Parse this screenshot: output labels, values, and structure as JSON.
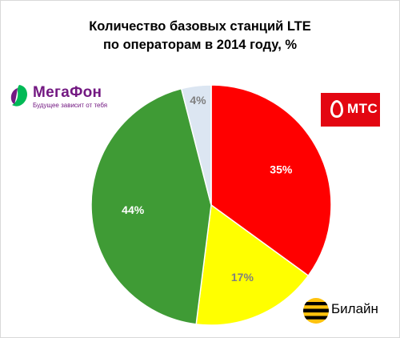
{
  "chart_data": {
    "type": "pie",
    "title": "Количество базовых станций LTE по операторам в 2014 году, %",
    "title_lines": [
      "Количество базовых станций LTE",
      "по операторам в 2014 году, %"
    ],
    "slices": [
      {
        "value": 35,
        "label": "35%",
        "color": "#ff0000"
      },
      {
        "value": 17,
        "label": "17%",
        "color": "#ffff00"
      },
      {
        "value": 44,
        "label": "44%",
        "color": "#3f9b35"
      },
      {
        "value": 4,
        "label": "4%",
        "color": "#dce6f2"
      }
    ],
    "start_angle_deg": 0,
    "direction": "clockwise",
    "legend": "operator logos beside slices"
  },
  "logos": {
    "megafon": {
      "word": "МегаФон",
      "slogan": "Будущее зависит от тебя",
      "color": "#731982",
      "accent": "#00b956"
    },
    "mts": {
      "word": "МТС",
      "color": "#e30611"
    },
    "beeline": {
      "word": "Билайн",
      "color": "#ffc20e"
    }
  }
}
